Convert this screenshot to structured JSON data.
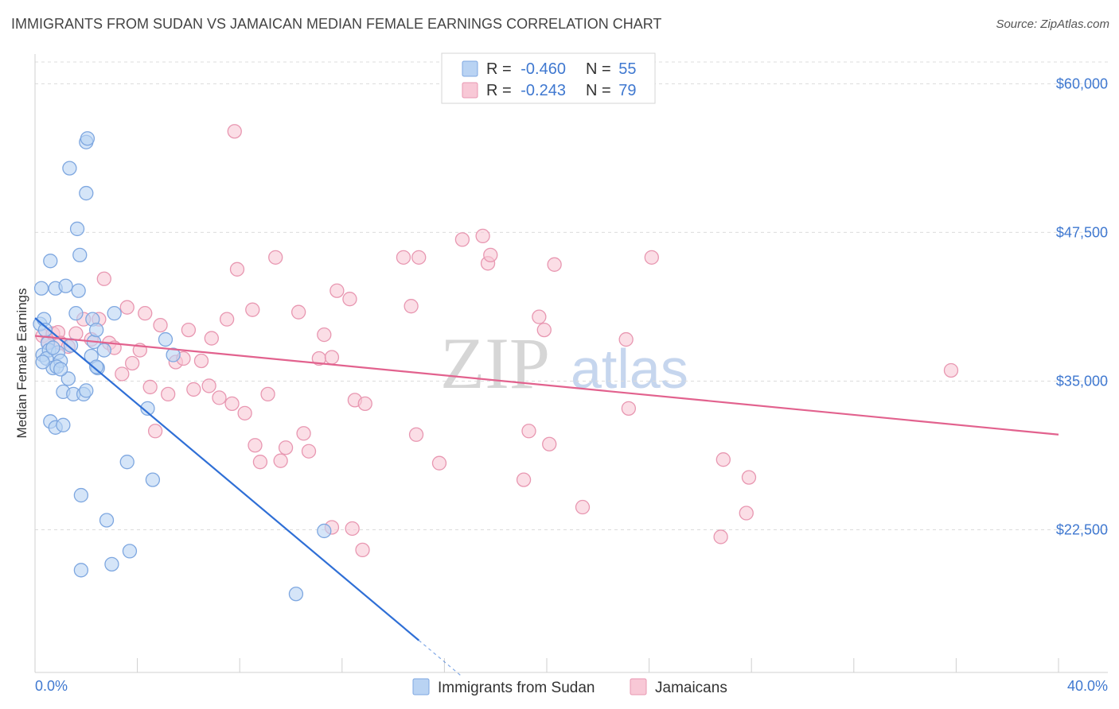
{
  "title": "IMMIGRANTS FROM SUDAN VS JAMAICAN MEDIAN FEMALE EARNINGS CORRELATION CHART",
  "source": "Source: ZipAtlas.com",
  "watermark": {
    "zip": "ZIP",
    "atlas": "atlas"
  },
  "colors": {
    "sudan_fill": "#b9d3f3",
    "sudan_stroke": "#7ea7e0",
    "sudan_line": "#2f6fd6",
    "jam_fill": "#f8c8d6",
    "jam_stroke": "#e897b1",
    "jam_line": "#e2628e",
    "accent_text": "#3f78d0",
    "grid": "#dcdcdc"
  },
  "legend": {
    "rows": [
      {
        "r_label": "R = ",
        "r_value": "-0.460",
        "n_label": "N = ",
        "n_value": "55"
      },
      {
        "r_label": "R = ",
        "r_value": "-0.243",
        "n_label": "N = ",
        "n_value": "79"
      }
    ]
  },
  "chart_data": {
    "type": "scatter",
    "title": "IMMIGRANTS FROM SUDAN VS JAMAICAN MEDIAN FEMALE EARNINGS CORRELATION CHART",
    "xlabel": "",
    "ylabel": "Median Female Earnings",
    "xlim": [
      0,
      40
    ],
    "ylim": [
      10500,
      62500
    ],
    "x_tick_labels": [
      "0.0%",
      "40.0%"
    ],
    "y_ticks": [
      22500,
      35000,
      47500,
      60000
    ],
    "y_tick_labels": [
      "$22,500",
      "$35,000",
      "$47,500",
      "$60,000"
    ],
    "grid": true,
    "series": [
      {
        "name": "Immigrants from Sudan",
        "r": -0.46,
        "n": 55,
        "trend": {
          "x0": 0.0,
          "y0": 40300,
          "x1": 15.0,
          "y1": 13200,
          "dash_to_x": 16.7
        },
        "points": [
          [
            0.2,
            39800
          ],
          [
            0.3,
            37200
          ],
          [
            0.25,
            42800
          ],
          [
            0.35,
            40200
          ],
          [
            0.4,
            39300
          ],
          [
            0.5,
            38200
          ],
          [
            0.55,
            37600
          ],
          [
            0.45,
            36900
          ],
          [
            0.6,
            45100
          ],
          [
            0.8,
            42800
          ],
          [
            0.7,
            36100
          ],
          [
            0.9,
            37400
          ],
          [
            1.0,
            36700
          ],
          [
            0.85,
            36200
          ],
          [
            1.1,
            34100
          ],
          [
            1.3,
            35200
          ],
          [
            1.5,
            33900
          ],
          [
            1.2,
            43000
          ],
          [
            1.4,
            38000
          ],
          [
            1.6,
            40700
          ],
          [
            1.7,
            42600
          ],
          [
            1.9,
            33900
          ],
          [
            2.0,
            34200
          ],
          [
            1.75,
            45600
          ],
          [
            1.65,
            47800
          ],
          [
            2.25,
            40200
          ],
          [
            2.3,
            38300
          ],
          [
            2.4,
            39300
          ],
          [
            2.45,
            36100
          ],
          [
            2.2,
            37100
          ],
          [
            1.35,
            52900
          ],
          [
            2.0,
            55100
          ],
          [
            2.05,
            55400
          ],
          [
            2.0,
            50800
          ],
          [
            3.1,
            40700
          ],
          [
            2.7,
            37600
          ],
          [
            5.1,
            38500
          ],
          [
            5.4,
            37200
          ],
          [
            4.4,
            32700
          ],
          [
            0.6,
            31600
          ],
          [
            0.8,
            31100
          ],
          [
            1.1,
            31300
          ],
          [
            3.6,
            28200
          ],
          [
            4.6,
            26700
          ],
          [
            1.8,
            25400
          ],
          [
            2.8,
            23300
          ],
          [
            3.7,
            20700
          ],
          [
            3.0,
            19600
          ],
          [
            1.8,
            19100
          ],
          [
            11.3,
            22400
          ],
          [
            10.2,
            17100
          ],
          [
            0.7,
            37800
          ],
          [
            1.0,
            36000
          ],
          [
            0.3,
            36600
          ],
          [
            2.4,
            36200
          ]
        ]
      },
      {
        "name": "Jamaicans",
        "r": -0.243,
        "n": 79,
        "trend": {
          "x0": 0.0,
          "y0": 38800,
          "x1": 40.0,
          "y1": 30500
        },
        "points": [
          [
            0.3,
            38800
          ],
          [
            0.5,
            38300
          ],
          [
            0.7,
            39000
          ],
          [
            0.9,
            39100
          ],
          [
            1.0,
            38200
          ],
          [
            1.3,
            37900
          ],
          [
            1.6,
            39000
          ],
          [
            1.9,
            40200
          ],
          [
            2.2,
            38500
          ],
          [
            2.5,
            40200
          ],
          [
            2.7,
            43600
          ],
          [
            2.9,
            38200
          ],
          [
            3.1,
            37800
          ],
          [
            3.4,
            35600
          ],
          [
            3.6,
            41200
          ],
          [
            3.8,
            36500
          ],
          [
            4.1,
            37600
          ],
          [
            4.3,
            40700
          ],
          [
            4.5,
            34500
          ],
          [
            4.7,
            30800
          ],
          [
            4.9,
            39700
          ],
          [
            5.2,
            33900
          ],
          [
            5.5,
            36600
          ],
          [
            5.8,
            36900
          ],
          [
            6.0,
            39300
          ],
          [
            6.2,
            34300
          ],
          [
            6.5,
            36700
          ],
          [
            6.8,
            34600
          ],
          [
            6.9,
            38600
          ],
          [
            7.2,
            33600
          ],
          [
            7.5,
            40200
          ],
          [
            7.7,
            33100
          ],
          [
            7.8,
            56000
          ],
          [
            7.9,
            44400
          ],
          [
            8.2,
            32300
          ],
          [
            8.5,
            41000
          ],
          [
            8.6,
            29600
          ],
          [
            8.8,
            28200
          ],
          [
            9.1,
            33900
          ],
          [
            9.4,
            45400
          ],
          [
            9.6,
            28300
          ],
          [
            9.8,
            29400
          ],
          [
            10.3,
            40800
          ],
          [
            10.5,
            30600
          ],
          [
            10.7,
            29100
          ],
          [
            11.1,
            36900
          ],
          [
            11.3,
            38900
          ],
          [
            11.6,
            37000
          ],
          [
            11.8,
            42600
          ],
          [
            12.3,
            41900
          ],
          [
            11.6,
            22700
          ],
          [
            12.4,
            22600
          ],
          [
            12.8,
            20800
          ],
          [
            12.5,
            33400
          ],
          [
            12.9,
            33100
          ],
          [
            14.4,
            45400
          ],
          [
            14.7,
            41300
          ],
          [
            14.9,
            30500
          ],
          [
            15.0,
            45400
          ],
          [
            15.8,
            28100
          ],
          [
            16.7,
            46900
          ],
          [
            17.5,
            47200
          ],
          [
            17.7,
            44900
          ],
          [
            17.8,
            45600
          ],
          [
            19.1,
            26700
          ],
          [
            19.3,
            30800
          ],
          [
            19.7,
            40400
          ],
          [
            19.9,
            39300
          ],
          [
            20.1,
            29700
          ],
          [
            20.3,
            44800
          ],
          [
            21.4,
            24400
          ],
          [
            23.1,
            38500
          ],
          [
            23.2,
            32700
          ],
          [
            24.1,
            45400
          ],
          [
            26.8,
            21900
          ],
          [
            26.9,
            28400
          ],
          [
            27.8,
            23900
          ],
          [
            27.9,
            26900
          ],
          [
            35.8,
            35900
          ]
        ]
      }
    ]
  }
}
